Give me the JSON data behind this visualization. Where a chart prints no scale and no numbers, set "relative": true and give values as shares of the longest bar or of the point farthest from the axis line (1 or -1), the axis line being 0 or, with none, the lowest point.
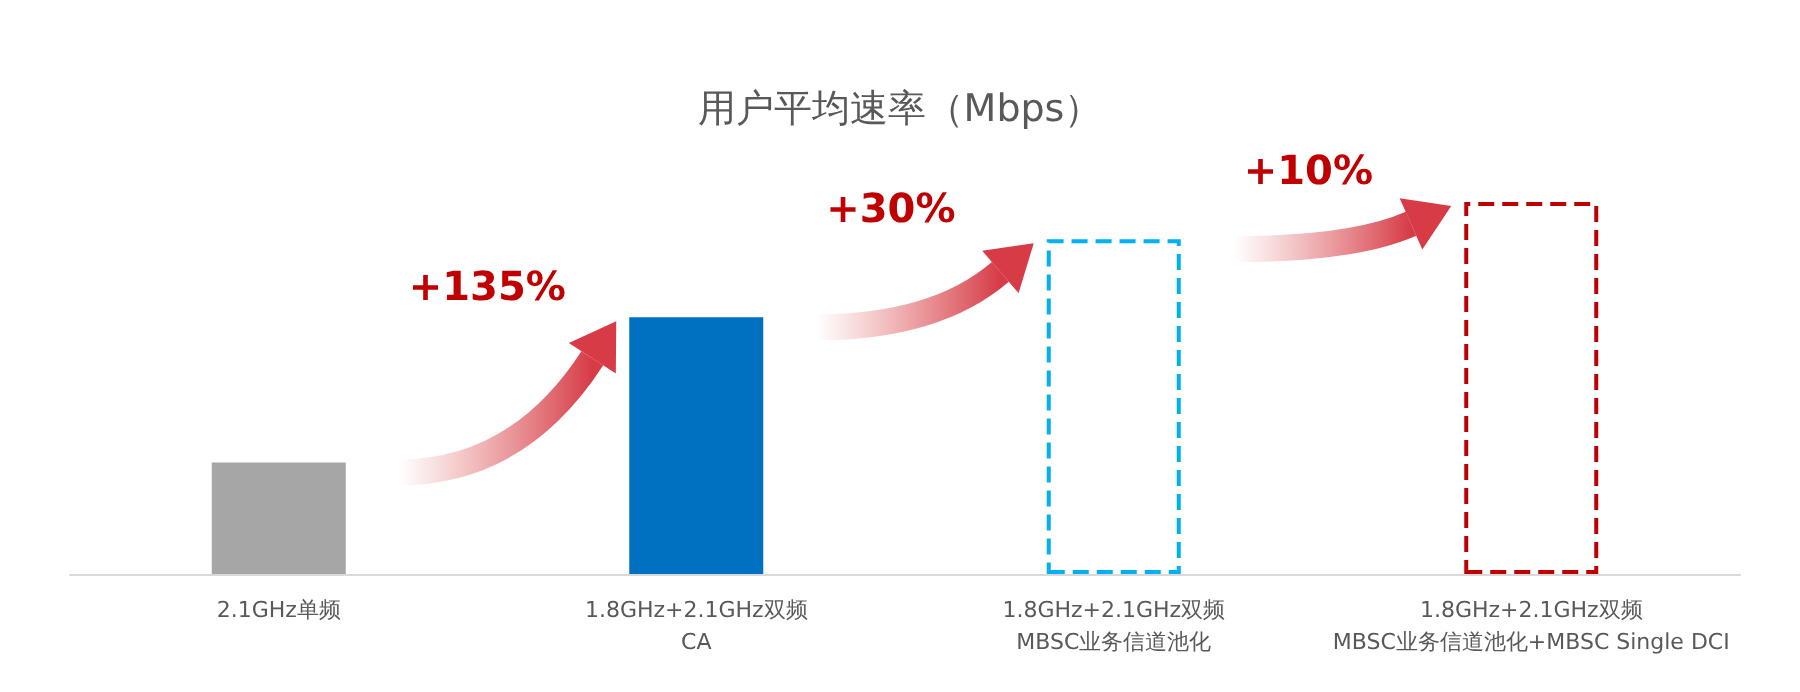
{
  "chart_data": {
    "type": "bar",
    "title": "用户平均速率（Mbps）",
    "relative": true,
    "categories": [
      "2.1GHz单频",
      "1.8GHz+2.1GHz双频\nCA",
      "1.8GHz+2.1GHz双频\nMBSC业务信道池化",
      "1.8GHz+2.1GHz双频\nMBSC业务信道池化+MBSC Single DCI"
    ],
    "series": [
      {
        "color": "#a6a6a6",
        "values": [
          0.3,
          null,
          null,
          null
        ]
      },
      {
        "color": "#0070c0",
        "values": [
          null,
          0.69,
          null,
          null
        ]
      },
      {
        "color": "#00b0f0",
        "values": [
          null,
          null,
          0.9,
          null
        ],
        "line_style": "dashed"
      },
      {
        "color": "#c00000",
        "values": [
          null,
          null,
          null,
          1
        ],
        "line_style": "dashed"
      }
    ],
    "annotations": [
      "+135%",
      "+30%",
      "+10%"
    ]
  }
}
